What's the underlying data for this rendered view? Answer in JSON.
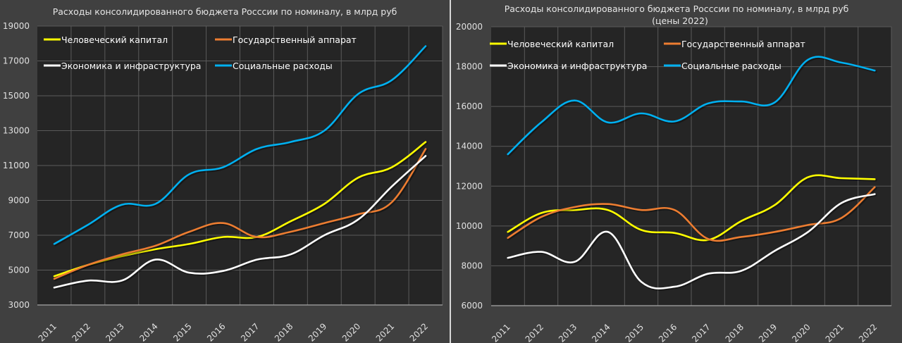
{
  "chart_data": [
    {
      "type": "line",
      "title": "Расходы консолидированного бюджета Росссии по номиналу, в млрд руб",
      "subtitle": "",
      "xlabel": "",
      "ylabel": "",
      "ylim": [
        3000,
        19000
      ],
      "yticks": [
        "3000",
        "5000",
        "7000",
        "9000",
        "11000",
        "13000",
        "15000",
        "17000",
        "19000"
      ],
      "ytick_values": [
        3000,
        5000,
        7000,
        9000,
        11000,
        13000,
        15000,
        17000,
        19000
      ],
      "grid": true,
      "legend_position": "top-left",
      "categories": [
        "2011",
        "2012",
        "2013",
        "2014",
        "2015",
        "2016",
        "2017",
        "2018",
        "2019",
        "2020",
        "2021",
        "2022"
      ],
      "series": [
        {
          "name": "Человеческий капитал",
          "color": "#ffff00",
          "values": [
            4650,
            5300,
            5800,
            6200,
            6500,
            6900,
            6900,
            7800,
            8800,
            10300,
            10900,
            12350
          ]
        },
        {
          "name": "Государственный аппарат",
          "color": "#ed7d31",
          "values": [
            4500,
            5300,
            5900,
            6400,
            7200,
            7700,
            6900,
            7200,
            7700,
            8200,
            8900,
            11950
          ]
        },
        {
          "name": "Экономика и инфраструктура",
          "color": "#ffffff",
          "values": [
            4000,
            4400,
            4400,
            5600,
            4850,
            4950,
            5600,
            5900,
            7000,
            7900,
            9800,
            11550
          ]
        },
        {
          "name": "Социальные расходы",
          "color": "#00b0f0",
          "values": [
            6500,
            7600,
            8750,
            8800,
            10500,
            10900,
            11950,
            12350,
            13000,
            15100,
            15900,
            17850
          ]
        }
      ]
    },
    {
      "type": "line",
      "title": "Расходы консолидированного бюджета Росссии по номиналу, в млрд руб",
      "subtitle": "(цены 2022)",
      "xlabel": "",
      "ylabel": "",
      "ylim": [
        6000,
        20000
      ],
      "yticks": [
        "6000",
        "8000",
        "10000",
        "12000",
        "14000",
        "16000",
        "18000",
        "20000"
      ],
      "ytick_values": [
        6000,
        8000,
        10000,
        12000,
        14000,
        16000,
        18000,
        20000
      ],
      "grid": true,
      "legend_position": "top-left",
      "categories": [
        "2011",
        "2012",
        "2013",
        "2014",
        "2015",
        "2016",
        "2017",
        "2018",
        "2019",
        "2020",
        "2021",
        "2022"
      ],
      "series": [
        {
          "name": "Человеческий капитал",
          "color": "#ffff00",
          "values": [
            9700,
            10650,
            10800,
            10800,
            9800,
            9650,
            9300,
            10250,
            11050,
            12450,
            12400,
            12350
          ]
        },
        {
          "name": "Государственный аппарат",
          "color": "#ed7d31",
          "values": [
            9400,
            10450,
            10950,
            11100,
            10800,
            10800,
            9350,
            9450,
            9700,
            10050,
            10400,
            11950
          ]
        },
        {
          "name": "Экономика и инфраструктура",
          "color": "#ffffff",
          "values": [
            8400,
            8700,
            8200,
            9700,
            7200,
            6950,
            7600,
            7750,
            8750,
            9700,
            11150,
            11600
          ]
        },
        {
          "name": "Социальные расходы",
          "color": "#00b0f0",
          "values": [
            13600,
            15200,
            16300,
            15200,
            15650,
            15250,
            16150,
            16250,
            16200,
            18350,
            18200,
            17800
          ]
        }
      ]
    }
  ],
  "colors": {
    "background": "#404040",
    "plot_background": "#252525",
    "grid": "#5a5a5a",
    "text": "#e6e6e6"
  }
}
